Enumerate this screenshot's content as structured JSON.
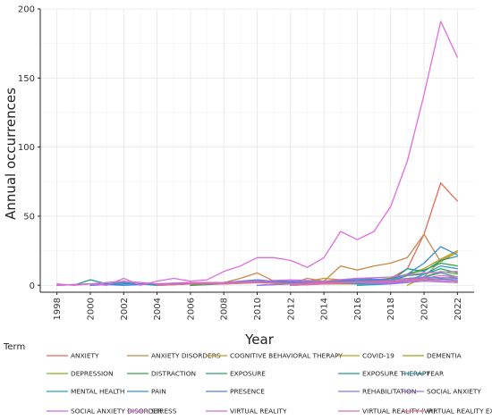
{
  "chart_data": {
    "type": "line",
    "xlabel": "Year",
    "ylabel": "Annual occurrences",
    "xlim": [
      1997,
      2023
    ],
    "ylim": [
      -5,
      200
    ],
    "x_ticks": [
      1998,
      2000,
      2002,
      2004,
      2006,
      2008,
      2010,
      2012,
      2014,
      2016,
      2018,
      2020,
      2022
    ],
    "y_ticks": [
      0,
      50,
      100,
      150,
      200
    ],
    "grid": true,
    "legend_title": "Term",
    "legend_placement": "bottom",
    "series": [
      {
        "name": "ANXIETY",
        "color": "#e26b58",
        "x": [
          2014,
          2015,
          2016,
          2017,
          2018,
          2019,
          2020,
          2021,
          2022
        ],
        "y": [
          1,
          2,
          2,
          3,
          5,
          12,
          37,
          74,
          61
        ]
      },
      {
        "name": "ANXIETY DISORDERS",
        "color": "#c9884a",
        "x": [
          2006,
          2007,
          2008,
          2009,
          2010,
          2011,
          2012,
          2013,
          2014,
          2015,
          2016,
          2017,
          2018,
          2019,
          2020,
          2021,
          2022
        ],
        "y": [
          0,
          1,
          2,
          5,
          9,
          3,
          1,
          5,
          3,
          14,
          11,
          14,
          16,
          20,
          37,
          17,
          24
        ]
      },
      {
        "name": "COGNITIVE BEHAVIORAL THERAPY",
        "color": "#c19a1e",
        "x": [
          2008,
          2010,
          2012,
          2014,
          2016,
          2018,
          2019,
          2020,
          2021,
          2022
        ],
        "y": [
          2,
          4,
          1,
          5,
          3,
          4,
          8,
          12,
          19,
          25
        ]
      },
      {
        "name": "COVID-19",
        "color": "#b2a91a",
        "x": [
          2019,
          2020,
          2021,
          2022
        ],
        "y": [
          0,
          6,
          18,
          24
        ]
      },
      {
        "name": "DEMENTIA",
        "color": "#9aa316",
        "x": [
          2012,
          2014,
          2016,
          2018,
          2020,
          2021,
          2022
        ],
        "y": [
          0,
          1,
          1,
          2,
          4,
          5,
          6
        ]
      },
      {
        "name": "DEPRESSION",
        "color": "#7fb523",
        "x": [
          2016,
          2017,
          2018,
          2019,
          2020,
          2021,
          2022
        ],
        "y": [
          1,
          1,
          2,
          3,
          6,
          10,
          8
        ]
      },
      {
        "name": "DISTRACTION",
        "color": "#39a23c",
        "x": [
          2006,
          2008,
          2010,
          2012,
          2014,
          2016,
          2018,
          2020,
          2021,
          2022
        ],
        "y": [
          0,
          1,
          2,
          1,
          3,
          3,
          5,
          11,
          16,
          14
        ]
      },
      {
        "name": "EXPOSURE",
        "color": "#2aa36a",
        "x": [
          2012,
          2014,
          2016,
          2018,
          2019,
          2020,
          2021,
          2022
        ],
        "y": [
          1,
          2,
          4,
          3,
          7,
          8,
          12,
          9
        ]
      },
      {
        "name": "EXPOSURE THERAPY",
        "color": "#1f9e8f",
        "x": [
          1999,
          2000,
          2001,
          2002,
          2004,
          2006,
          2008,
          2010,
          2012,
          2014,
          2016,
          2018,
          2019,
          2020,
          2021,
          2022
        ],
        "y": [
          0,
          4,
          1,
          2,
          0,
          1,
          2,
          3,
          3,
          2,
          5,
          3,
          12,
          10,
          18,
          21
        ]
      },
      {
        "name": "FEAR",
        "color": "#2aa0c0",
        "x": [
          2010,
          2012,
          2014,
          2016,
          2018,
          2020,
          2021,
          2022
        ],
        "y": [
          0,
          1,
          2,
          1,
          2,
          6,
          9,
          6
        ]
      },
      {
        "name": "MENTAL HEALTH",
        "color": "#2a9cdc",
        "x": [
          2016,
          2018,
          2019,
          2020,
          2021,
          2022
        ],
        "y": [
          0,
          1,
          3,
          8,
          14,
          12
        ]
      },
      {
        "name": "PAIN",
        "color": "#3c8ee0",
        "x": [
          1998,
          2000,
          2002,
          2004,
          2006,
          2008,
          2010,
          2012,
          2014,
          2016,
          2018,
          2019,
          2020,
          2021,
          2022
        ],
        "y": [
          0,
          1,
          0,
          1,
          1,
          2,
          3,
          2,
          3,
          5,
          4,
          8,
          16,
          28,
          22
        ]
      },
      {
        "name": "PRESENCE",
        "color": "#5b7ee6",
        "x": [
          2000,
          2002,
          2004,
          2006,
          2008,
          2010,
          2012,
          2014,
          2016,
          2018,
          2020,
          2022
        ],
        "y": [
          0,
          1,
          1,
          2,
          2,
          4,
          2,
          3,
          4,
          3,
          5,
          4
        ]
      },
      {
        "name": "REHABILITATION",
        "color": "#7f78e8",
        "x": [
          2004,
          2006,
          2008,
          2010,
          2012,
          2014,
          2016,
          2018,
          2020,
          2022
        ],
        "y": [
          0,
          1,
          1,
          2,
          3,
          2,
          3,
          4,
          6,
          5
        ]
      },
      {
        "name": "SOCIAL ANXIETY",
        "color": "#9e72e4",
        "x": [
          2010,
          2012,
          2014,
          2016,
          2018,
          2020,
          2022
        ],
        "y": [
          0,
          1,
          1,
          2,
          1,
          3,
          2
        ]
      },
      {
        "name": "SOCIAL ANXIETY DISORDER",
        "color": "#bc6fe6",
        "x": [
          2012,
          2014,
          2016,
          2018,
          2020,
          2022
        ],
        "y": [
          0,
          1,
          2,
          2,
          4,
          3
        ]
      },
      {
        "name": "STRESS",
        "color": "#e06ddf",
        "x": [
          1998,
          1999,
          2000,
          2001,
          2002,
          2003,
          2004,
          2005,
          2006,
          2007,
          2008,
          2009,
          2010,
          2011,
          2012,
          2013,
          2014,
          2015,
          2016,
          2017,
          2018,
          2019,
          2020,
          2021,
          2022
        ],
        "y": [
          1,
          0,
          1,
          0,
          5,
          0,
          3,
          5,
          3,
          4,
          10,
          14,
          20,
          20,
          18,
          13,
          20,
          39,
          33,
          39,
          57,
          90,
          138,
          191,
          165
        ]
      },
      {
        "name": "VIRTUAL REALITY",
        "color": "#d46ccf",
        "x": [
          1998,
          2000,
          2002,
          2004,
          2006,
          2008,
          2010,
          2012,
          2014,
          2016,
          2018,
          2020,
          2022
        ],
        "y": [
          0,
          1,
          3,
          1,
          2,
          2,
          3,
          4,
          3,
          5,
          6,
          9,
          10
        ]
      },
      {
        "name": "VIRTUAL REALITY (VR)",
        "color": "#dd6fb4",
        "x": [
          2012,
          2014,
          2016,
          2018,
          2020,
          2021,
          2022
        ],
        "y": [
          0,
          1,
          2,
          3,
          5,
          7,
          6
        ]
      },
      {
        "name": "VIRTUAL REALITY EXPOSURE THERAPY",
        "color": "#e56f92",
        "x": [
          2004,
          2006,
          2008,
          2010,
          2012,
          2014,
          2016,
          2018,
          2020,
          2022
        ],
        "y": [
          0,
          1,
          1,
          2,
          1,
          2,
          2,
          3,
          4,
          3
        ]
      }
    ]
  }
}
